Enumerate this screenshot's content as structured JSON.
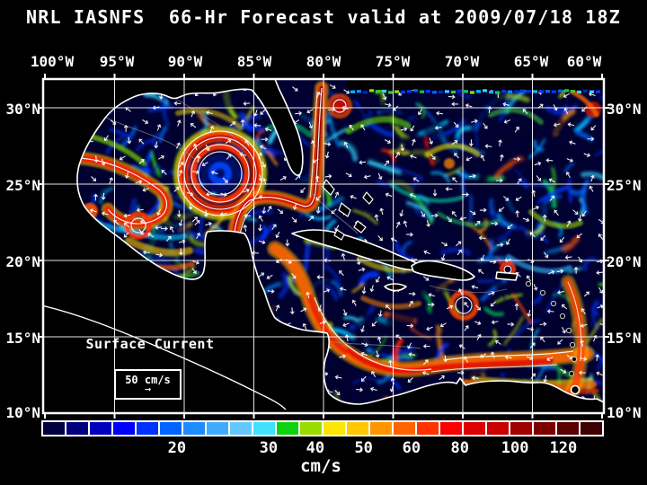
{
  "title": "NRL IASNFS  66-Hr Forecast valid at 2009/07/18 18Z",
  "map": {
    "lon_labels": [
      "100°W",
      "95°W",
      "90°W",
      "85°W",
      "80°W",
      "75°W",
      "70°W",
      "65°W",
      "60°W"
    ],
    "lat_labels": [
      "30°N",
      "25°N",
      "20°N",
      "15°N",
      "10°N"
    ],
    "annotation_label": "Surface Current",
    "scale_value_label": "50 cm/s",
    "scale_arrow": "→"
  },
  "colorbar": {
    "unit_label": "cm/s",
    "tick_labels": [
      "20",
      "30",
      "40",
      "50",
      "60",
      "80",
      "100",
      "120"
    ],
    "tick_positions_pct": [
      24.1,
      40.4,
      48.7,
      57.3,
      65.8,
      74.4,
      84.2,
      92.8
    ],
    "cell_colors": [
      "#000041",
      "#00007e",
      "#0000bc",
      "#0000fa",
      "#0032ff",
      "#0064ff",
      "#1e8cff",
      "#41aaff",
      "#64c8ff",
      "#41e1ff",
      "#0fd20f",
      "#9bdc00",
      "#fae600",
      "#ffc800",
      "#ff9600",
      "#ff6400",
      "#ff3200",
      "#fa0000",
      "#dc0000",
      "#c80000",
      "#a00000",
      "#7d0000",
      "#590000",
      "#3c0000"
    ]
  },
  "palette": {
    "background": "#000000",
    "ocean_base": "#000031",
    "grid": "#ffffff",
    "coastline": "#ffffff",
    "text": "#ffffff"
  }
}
